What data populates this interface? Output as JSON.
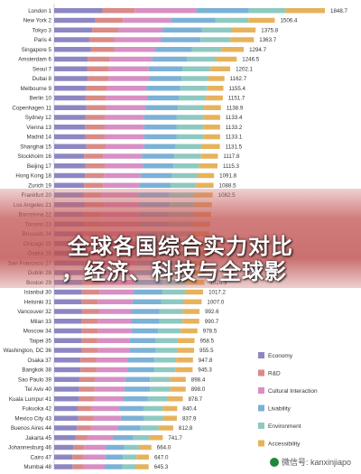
{
  "chart_data": {
    "type": "bar",
    "stacked": true,
    "orientation": "horizontal",
    "categories": [
      "London 1",
      "New York 2",
      "Tokyo 3",
      "Paris 4",
      "Singapore 5",
      "Amsterdam 6",
      "Seoul 7",
      "Dubai 8",
      "Melbourne 9",
      "Berlin 10",
      "Copenhagen 11",
      "Sydney 12",
      "Vienna 13",
      "Madrid 14",
      "Shanghai 15",
      "Stockholm 16",
      "Beijing 17",
      "Hong Kong 18",
      "Zurich 19",
      "Frankfurt 20",
      "Los Angeles 21",
      "Barcelona 22",
      "Toronto 23",
      "Brussels 24",
      "Chicago 25",
      "Osaka 26",
      "San Francisco 27",
      "Dublin 28",
      "Boston 29",
      "Istanbul 30",
      "Helsinki 31",
      "Vancouver 32",
      "Milan 33",
      "Moscow 34",
      "Taipei 35",
      "Washington, DC 36",
      "Osaka 37",
      "Bangkok 38",
      "Sao Paulo 39",
      "Tel Aviv 40",
      "Kuala Lumpur 41",
      "Fukuoka 42",
      "Mexico City 43",
      "Buenos Aires 44",
      "Jakarta 45",
      "Johannesburg 46",
      "Cairo 47",
      "Mumbai 48"
    ],
    "totals": [
      1848.7,
      1506.4,
      1375.8,
      1363.7,
      1294.7,
      1246.5,
      1202.1,
      1162.7,
      1155.4,
      1151.7,
      1138.9,
      1133.4,
      1133.2,
      1133.1,
      1131.5,
      1117.8,
      1115.3,
      1091.8,
      1088.5,
      1082.5,
      1076.5,
      1071.0,
      1065.0,
      1058.3,
      1054.1,
      1048.7,
      1042.5,
      1036.1,
      1026.3,
      1017.2,
      1007.0,
      992.6,
      990.7,
      978.5,
      958.5,
      955.5,
      947.8,
      945.3,
      898.4,
      898.0,
      878.7,
      840.4,
      837.9,
      812.8,
      741.7,
      664.0,
      647.0,
      645.3
    ],
    "visible_total_labels": [
      true,
      true,
      true,
      true,
      true,
      true,
      true,
      true,
      true,
      true,
      true,
      true,
      true,
      true,
      true,
      true,
      true,
      true,
      true,
      true,
      false,
      false,
      false,
      false,
      false,
      false,
      false,
      false,
      true,
      true,
      true,
      true,
      true,
      true,
      true,
      true,
      true,
      true,
      true,
      true,
      true,
      true,
      true,
      true,
      true,
      true,
      true,
      true
    ],
    "series": [
      {
        "name": "Economy",
        "color": "#8c87c2",
        "values": [
          330,
          280,
          260,
          240,
          250,
          230,
          225,
          230,
          220,
          215,
          220,
          215,
          210,
          215,
          220,
          205,
          215,
          210,
          205,
          200,
          210,
          200,
          205,
          195,
          200,
          200,
          205,
          195,
          195,
          190,
          185,
          190,
          185,
          185,
          185,
          190,
          180,
          180,
          175,
          170,
          170,
          160,
          165,
          155,
          145,
          130,
          125,
          125
        ]
      },
      {
        "name": "R&D",
        "color": "#d98a87",
        "values": [
          220,
          190,
          180,
          170,
          160,
          150,
          150,
          140,
          140,
          140,
          135,
          135,
          135,
          135,
          135,
          130,
          135,
          130,
          130,
          125,
          130,
          125,
          125,
          125,
          120,
          125,
          125,
          120,
          120,
          120,
          115,
          115,
          115,
          115,
          110,
          110,
          110,
          110,
          105,
          105,
          105,
          95,
          100,
          95,
          85,
          75,
          75,
          75
        ]
      },
      {
        "name": "Cultural Interaction",
        "color": "#d78fc4",
        "values": [
          420,
          330,
          300,
          320,
          280,
          290,
          270,
          280,
          270,
          280,
          270,
          265,
          270,
          265,
          260,
          265,
          255,
          250,
          250,
          250,
          245,
          250,
          245,
          245,
          245,
          240,
          235,
          240,
          235,
          235,
          235,
          225,
          230,
          225,
          220,
          215,
          215,
          215,
          205,
          205,
          200,
          195,
          190,
          185,
          170,
          150,
          150,
          145
        ]
      },
      {
        "name": "Livability",
        "color": "#7cb1d6",
        "values": [
          360,
          300,
          270,
          270,
          250,
          240,
          230,
          220,
          230,
          220,
          220,
          220,
          220,
          220,
          215,
          220,
          210,
          215,
          210,
          210,
          205,
          205,
          200,
          205,
          200,
          200,
          195,
          200,
          195,
          195,
          195,
          190,
          190,
          185,
          180,
          180,
          180,
          180,
          170,
          175,
          165,
          160,
          160,
          155,
          140,
          125,
          120,
          120
        ]
      },
      {
        "name": "Environment",
        "color": "#8ec9c0",
        "values": [
          248.7,
          226.4,
          200.8,
          203.7,
          204.7,
          196.5,
          192.1,
          182.7,
          185.4,
          181.7,
          178.9,
          183.4,
          183.2,
          183.1,
          176.5,
          182.8,
          175.3,
          171.8,
          173.5,
          172.5,
          166.5,
          171,
          170,
          168.3,
          169.1,
          163.7,
          162.5,
          166.1,
          161.3,
          159.2,
          157,
          157.6,
          155.7,
          153.5,
          148.5,
          145.5,
          147.8,
          145.3,
          138.4,
          138,
          133.7,
          130.4,
          127.9,
          122.8,
          111.7,
          99,
          92,
          95.3
        ]
      },
      {
        "name": "Accessibility",
        "color": "#e7b25c",
        "values": [
          270,
          180,
          165,
          160,
          150,
          140,
          135,
          110,
          110,
          115,
          115,
          115,
          115,
          115,
          125,
          115,
          125,
          115,
          120,
          125,
          120,
          120,
          120,
          120,
          120,
          120,
          120,
          115,
          120,
          118,
          120,
          115,
          115,
          115,
          115,
          115,
          115,
          115,
          105,
          105,
          105,
          100,
          95,
          100,
          90,
          85,
          85,
          85
        ]
      }
    ],
    "legend_position": "right-bottom",
    "grid": false
  },
  "overlay": {
    "line1": "全球各国综合实力对比",
    "line2": "，经济、科技与全球影"
  },
  "watermark": {
    "text": "微信号: kanxinjiapo"
  }
}
